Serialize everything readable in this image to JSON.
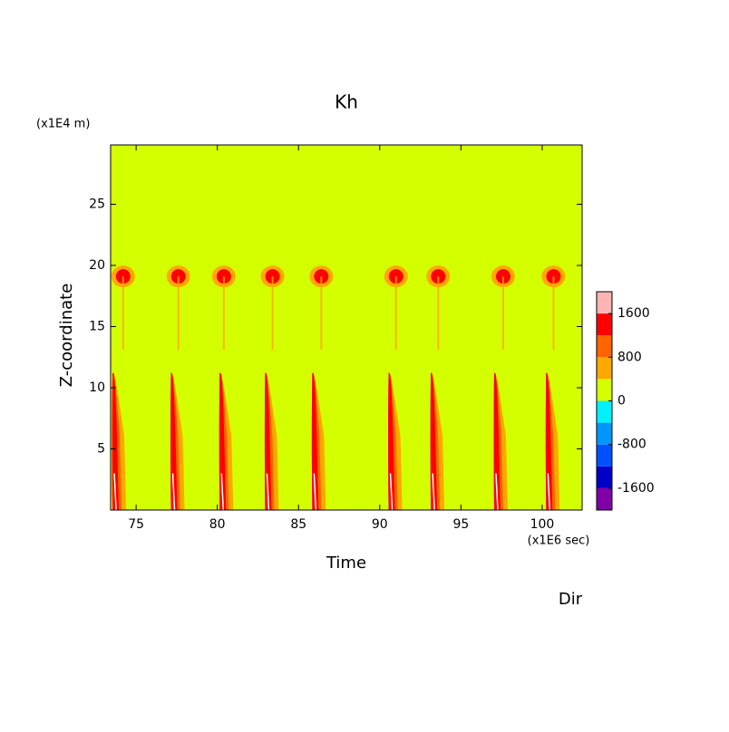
{
  "chart_data": {
    "type": "contour",
    "title": "Kh",
    "y_unit": "(x1E4 m)",
    "ylabel": "Z-coordinate",
    "xlabel": "Time",
    "x_unit": "(x1E6 sec)",
    "dir_label": "Dir",
    "xlim": [
      73.43,
      102.46
    ],
    "xticks": [
      75,
      80,
      85,
      90,
      95,
      100
    ],
    "ylim": [
      0,
      29.85
    ],
    "yticks": [
      5,
      10,
      15,
      20,
      25
    ],
    "background_color": "#d4ff00",
    "levels": [
      -2000,
      -1600,
      -1200,
      -800,
      -400,
      0,
      400,
      800,
      1200,
      1600,
      2000
    ],
    "level_colors": [
      "#8000a8",
      "#0000c8",
      "#0050ff",
      "#0096ff",
      "#00f0ff",
      "#d4ff00",
      "#ffa800",
      "#ff6400",
      "#ff0000",
      "#ffb4b4"
    ],
    "cticks": [
      -1600,
      -800,
      0,
      800,
      1600
    ],
    "surface_events": [
      73.6,
      77.2,
      80.2,
      83.0,
      85.9,
      90.6,
      93.2,
      97.1,
      100.3
    ],
    "upper_events": [
      74.2,
      77.6,
      80.4,
      83.4,
      86.4,
      91.0,
      93.6,
      97.6,
      100.7
    ],
    "upper_z": 19.1
  }
}
